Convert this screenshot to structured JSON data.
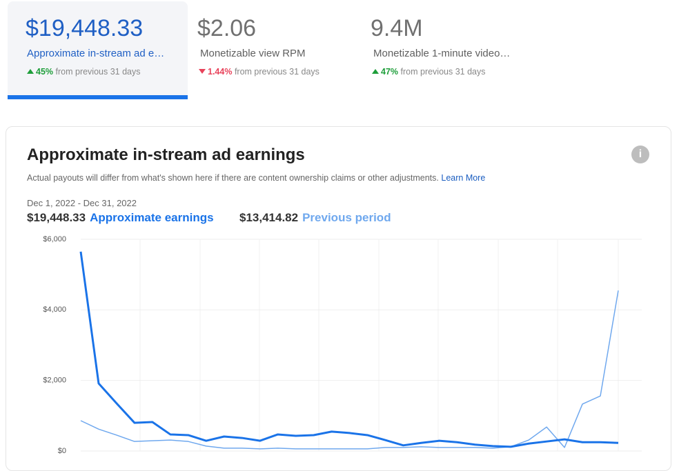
{
  "metrics": [
    {
      "value": "$19,448.33",
      "label": "Approximate in-stream ad e…",
      "change": "45%",
      "note": "from previous 31 days"
    },
    {
      "value": "$2.06",
      "label": "Monetizable view RPM",
      "change": "1.44%",
      "note": "from previous 31 days"
    },
    {
      "value": "9.4M",
      "label": "Monetizable 1-minute video…",
      "change": "47%",
      "note": "from previous 31 days"
    }
  ],
  "chart_data": {
    "type": "line",
    "title": "Approximate in-stream ad earnings",
    "subtitle": "Actual payouts will differ from what's shown here if there are content ownership claims or other adjustments.",
    "link": "Learn More",
    "date_range": "Dec 1, 2022 - Dec 31, 2022",
    "series": [
      {
        "name": "Approximate earnings",
        "total": "$19,448.33",
        "color": "#1a73e8",
        "width": 3,
        "values": [
          5650,
          1915,
          1350,
          800,
          820,
          470,
          450,
          290,
          410,
          370,
          290,
          470,
          430,
          450,
          550,
          510,
          450,
          310,
          160,
          230,
          290,
          250,
          180,
          140,
          120,
          210,
          270,
          330,
          250,
          250,
          230
        ]
      },
      {
        "name": "Previous period",
        "total": "$13,414.82",
        "color": "#6fa8ee",
        "width": 1.5,
        "values": [
          860,
          620,
          450,
          270,
          290,
          310,
          270,
          140,
          80,
          80,
          60,
          80,
          60,
          60,
          60,
          60,
          60,
          100,
          100,
          120,
          100,
          100,
          100,
          80,
          120,
          310,
          680,
          100,
          1330,
          1560,
          4550
        ]
      }
    ],
    "ylim": [
      0,
      6000
    ],
    "yticks": [
      {
        "value": 0,
        "label": "$0"
      },
      {
        "value": 2000,
        "label": "$2,000"
      },
      {
        "value": 4000,
        "label": "$4,000"
      },
      {
        "value": 6000,
        "label": "$6,000"
      }
    ],
    "grid": true
  }
}
